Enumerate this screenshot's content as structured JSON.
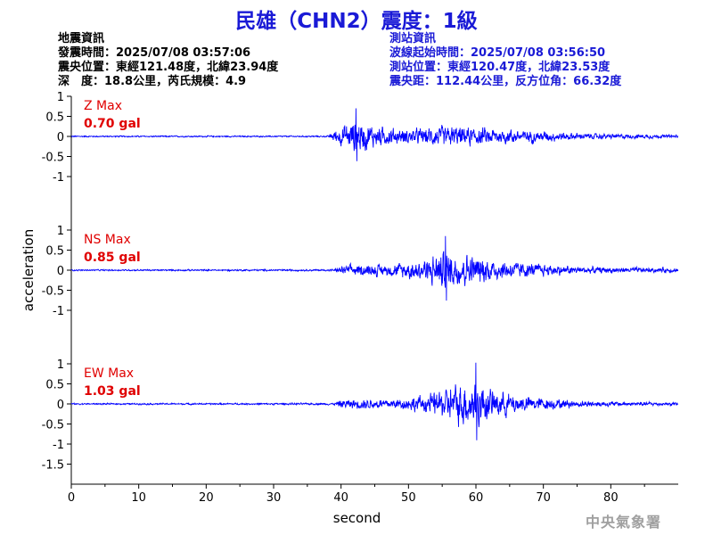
{
  "header": {
    "title": "民雄（CHN2）震度：1級"
  },
  "quake_info": {
    "heading": "地震資訊",
    "origin_time": "發震時間：2025/07/08 03:57:06",
    "epicenter": "震央位置：東經121.48度，北緯23.94度",
    "depth_magnitude": "深　度：18.8公里，芮氏規模：4.9"
  },
  "station_info": {
    "heading": "測站資訊",
    "wave_onset": "波線起始時間：2025/07/08 03:56:50",
    "location": "測站位置：東經120.47度，北緯23.53度",
    "distance_azimuth": "震央距：112.44公里，反方位角：66.32度"
  },
  "footer": {
    "agency": "中央氣象署"
  },
  "colors": {
    "trace": "#0000ff",
    "max_label": "#e00000",
    "title": "#1a1ad6"
  },
  "chart_data": {
    "type": "line",
    "xlabel": "second",
    "ylabel": "acceleration",
    "xlim": [
      0,
      90
    ],
    "xticks": [
      0,
      10,
      20,
      30,
      40,
      50,
      60,
      70,
      80
    ],
    "panels": [
      {
        "component": "Z",
        "max_label": "Z Max",
        "max_value": "0.70 gal",
        "ylim": [
          -1,
          1
        ],
        "yticks": [
          1,
          0.5,
          0,
          -0.5,
          -1
        ],
        "onset_s": 38.5,
        "peak_time_s": 42.2,
        "envelope": [
          [
            0,
            0.03
          ],
          [
            38,
            0.03
          ],
          [
            39,
            0.25
          ],
          [
            41,
            0.55
          ],
          [
            42.2,
            0.7
          ],
          [
            45,
            0.45
          ],
          [
            49,
            0.3
          ],
          [
            52,
            0.35
          ],
          [
            56,
            0.45
          ],
          [
            60,
            0.38
          ],
          [
            65,
            0.3
          ],
          [
            70,
            0.22
          ],
          [
            75,
            0.14
          ],
          [
            80,
            0.1
          ],
          [
            90,
            0.07
          ]
        ]
      },
      {
        "component": "NS",
        "max_label": "NS Max",
        "max_value": "0.85 gal",
        "ylim": [
          -1,
          1
        ],
        "yticks": [
          1,
          0.5,
          0,
          -0.5,
          -1
        ],
        "onset_s": 39,
        "peak_time_s": 55.5,
        "envelope": [
          [
            0,
            0.03
          ],
          [
            39,
            0.04
          ],
          [
            40,
            0.18
          ],
          [
            43,
            0.25
          ],
          [
            47,
            0.25
          ],
          [
            50,
            0.35
          ],
          [
            53,
            0.55
          ],
          [
            55.5,
            0.85
          ],
          [
            58,
            0.7
          ],
          [
            62,
            0.5
          ],
          [
            66,
            0.35
          ],
          [
            70,
            0.25
          ],
          [
            75,
            0.16
          ],
          [
            80,
            0.12
          ],
          [
            90,
            0.1
          ]
        ]
      },
      {
        "component": "EW",
        "max_label": "EW Max",
        "max_value": "1.03 gal",
        "ylim": [
          -1.5,
          1
        ],
        "yticks": [
          1,
          0.5,
          0,
          -0.5,
          -1,
          -1.5
        ],
        "onset_s": 39,
        "peak_time_s": 60,
        "envelope": [
          [
            0,
            0.03
          ],
          [
            39,
            0.04
          ],
          [
            40,
            0.18
          ],
          [
            44,
            0.22
          ],
          [
            48,
            0.22
          ],
          [
            52,
            0.35
          ],
          [
            55,
            0.6
          ],
          [
            57,
            0.8
          ],
          [
            60,
            1.03
          ],
          [
            62,
            0.65
          ],
          [
            66,
            0.4
          ],
          [
            70,
            0.25
          ],
          [
            75,
            0.15
          ],
          [
            80,
            0.1
          ],
          [
            90,
            0.07
          ]
        ]
      }
    ]
  }
}
